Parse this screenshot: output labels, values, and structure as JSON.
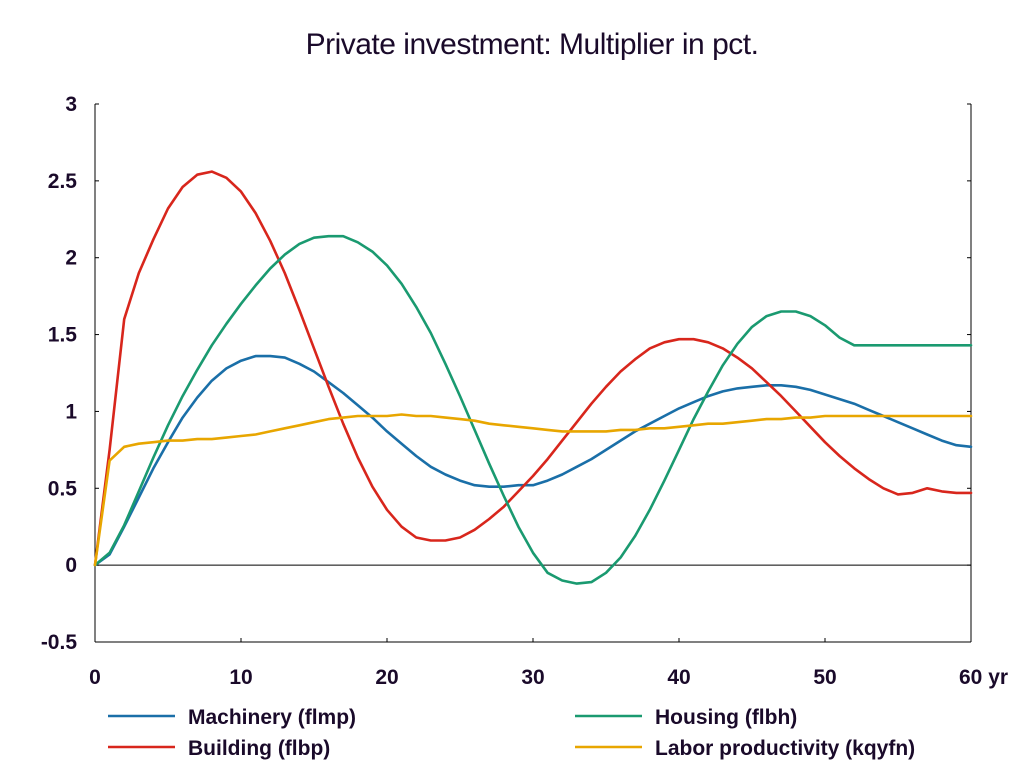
{
  "chart_data": {
    "type": "line",
    "title": "Private investment: Multiplier in pct.",
    "xlabel": "",
    "ylabel": "",
    "x_unit_label": "yr",
    "xlim": [
      0,
      60
    ],
    "ylim": [
      -0.5,
      3
    ],
    "x_ticks": [
      0,
      10,
      20,
      30,
      40,
      50,
      60
    ],
    "x_tick_labels": [
      "0",
      "10",
      "20",
      "30",
      "40",
      "50",
      "60 yr"
    ],
    "y_ticks": [
      -0.5,
      0,
      0.5,
      1,
      1.5,
      2,
      2.5,
      3
    ],
    "y_tick_labels": [
      "-0.5",
      "0",
      "0.5",
      "1",
      "1.5",
      "2",
      "2.5",
      "3"
    ],
    "grid": false,
    "zero_line": true,
    "legend_position": "bottom",
    "x": [
      0,
      1,
      2,
      3,
      4,
      5,
      6,
      7,
      8,
      9,
      10,
      11,
      12,
      13,
      14,
      15,
      16,
      17,
      18,
      19,
      20,
      21,
      22,
      23,
      24,
      25,
      26,
      27,
      28,
      29,
      30,
      31,
      32,
      33,
      34,
      35,
      36,
      37,
      38,
      39,
      40,
      41,
      42,
      43,
      44,
      45,
      46,
      47,
      48,
      49,
      50,
      51,
      52,
      53,
      54,
      55,
      56,
      57,
      58,
      59,
      60
    ],
    "series": [
      {
        "name": "Machinery (flmp)",
        "color": "#1a6fa8",
        "values": [
          0,
          0.07,
          0.25,
          0.44,
          0.63,
          0.8,
          0.96,
          1.09,
          1.2,
          1.28,
          1.33,
          1.36,
          1.36,
          1.35,
          1.31,
          1.26,
          1.19,
          1.12,
          1.04,
          0.96,
          0.87,
          0.79,
          0.71,
          0.64,
          0.59,
          0.55,
          0.52,
          0.51,
          0.51,
          0.52,
          0.52,
          0.55,
          0.59,
          0.64,
          0.69,
          0.75,
          0.81,
          0.87,
          0.92,
          0.97,
          1.02,
          1.06,
          1.1,
          1.13,
          1.15,
          1.16,
          1.17,
          1.17,
          1.16,
          1.14,
          1.11,
          1.08,
          1.05,
          1.01,
          0.97,
          0.93,
          0.89,
          0.85,
          0.81,
          0.78,
          0.77
        ]
      },
      {
        "name": "Building (flbp)",
        "color": "#d8261c",
        "values": [
          0,
          0.75,
          1.6,
          1.9,
          2.12,
          2.32,
          2.46,
          2.54,
          2.56,
          2.52,
          2.43,
          2.29,
          2.11,
          1.9,
          1.66,
          1.41,
          1.16,
          0.92,
          0.7,
          0.51,
          0.36,
          0.25,
          0.18,
          0.16,
          0.16,
          0.18,
          0.23,
          0.3,
          0.38,
          0.48,
          0.58,
          0.69,
          0.81,
          0.93,
          1.05,
          1.16,
          1.26,
          1.34,
          1.41,
          1.45,
          1.47,
          1.47,
          1.45,
          1.41,
          1.35,
          1.28,
          1.19,
          1.1,
          1.0,
          0.9,
          0.8,
          0.71,
          0.63,
          0.56,
          0.5,
          0.46,
          0.47,
          0.5,
          0.48,
          0.47,
          0.47
        ]
      },
      {
        "name": "Housing (flbh)",
        "color": "#1a9a70",
        "values": [
          0,
          0.08,
          0.26,
          0.48,
          0.7,
          0.91,
          1.1,
          1.27,
          1.43,
          1.57,
          1.7,
          1.82,
          1.93,
          2.02,
          2.09,
          2.13,
          2.14,
          2.14,
          2.1,
          2.04,
          1.95,
          1.83,
          1.68,
          1.51,
          1.31,
          1.1,
          0.88,
          0.66,
          0.45,
          0.25,
          0.08,
          -0.05,
          -0.1,
          -0.12,
          -0.11,
          -0.05,
          0.05,
          0.19,
          0.36,
          0.55,
          0.75,
          0.95,
          1.13,
          1.3,
          1.44,
          1.55,
          1.62,
          1.65,
          1.65,
          1.62,
          1.56,
          1.48,
          1.43,
          1.43,
          1.43,
          1.43,
          1.43,
          1.43,
          1.43,
          1.43,
          1.43
        ]
      },
      {
        "name": "Labor productivity (kqyfn)",
        "color": "#e8a600",
        "values": [
          0,
          0.68,
          0.77,
          0.79,
          0.8,
          0.81,
          0.81,
          0.82,
          0.82,
          0.83,
          0.84,
          0.85,
          0.87,
          0.89,
          0.91,
          0.93,
          0.95,
          0.96,
          0.97,
          0.97,
          0.97,
          0.98,
          0.97,
          0.97,
          0.96,
          0.95,
          0.94,
          0.92,
          0.91,
          0.9,
          0.89,
          0.88,
          0.87,
          0.87,
          0.87,
          0.87,
          0.88,
          0.88,
          0.89,
          0.89,
          0.9,
          0.91,
          0.92,
          0.92,
          0.93,
          0.94,
          0.95,
          0.95,
          0.96,
          0.96,
          0.97,
          0.97,
          0.97,
          0.97,
          0.97,
          0.97,
          0.97,
          0.97,
          0.97,
          0.97,
          0.97
        ]
      }
    ]
  }
}
